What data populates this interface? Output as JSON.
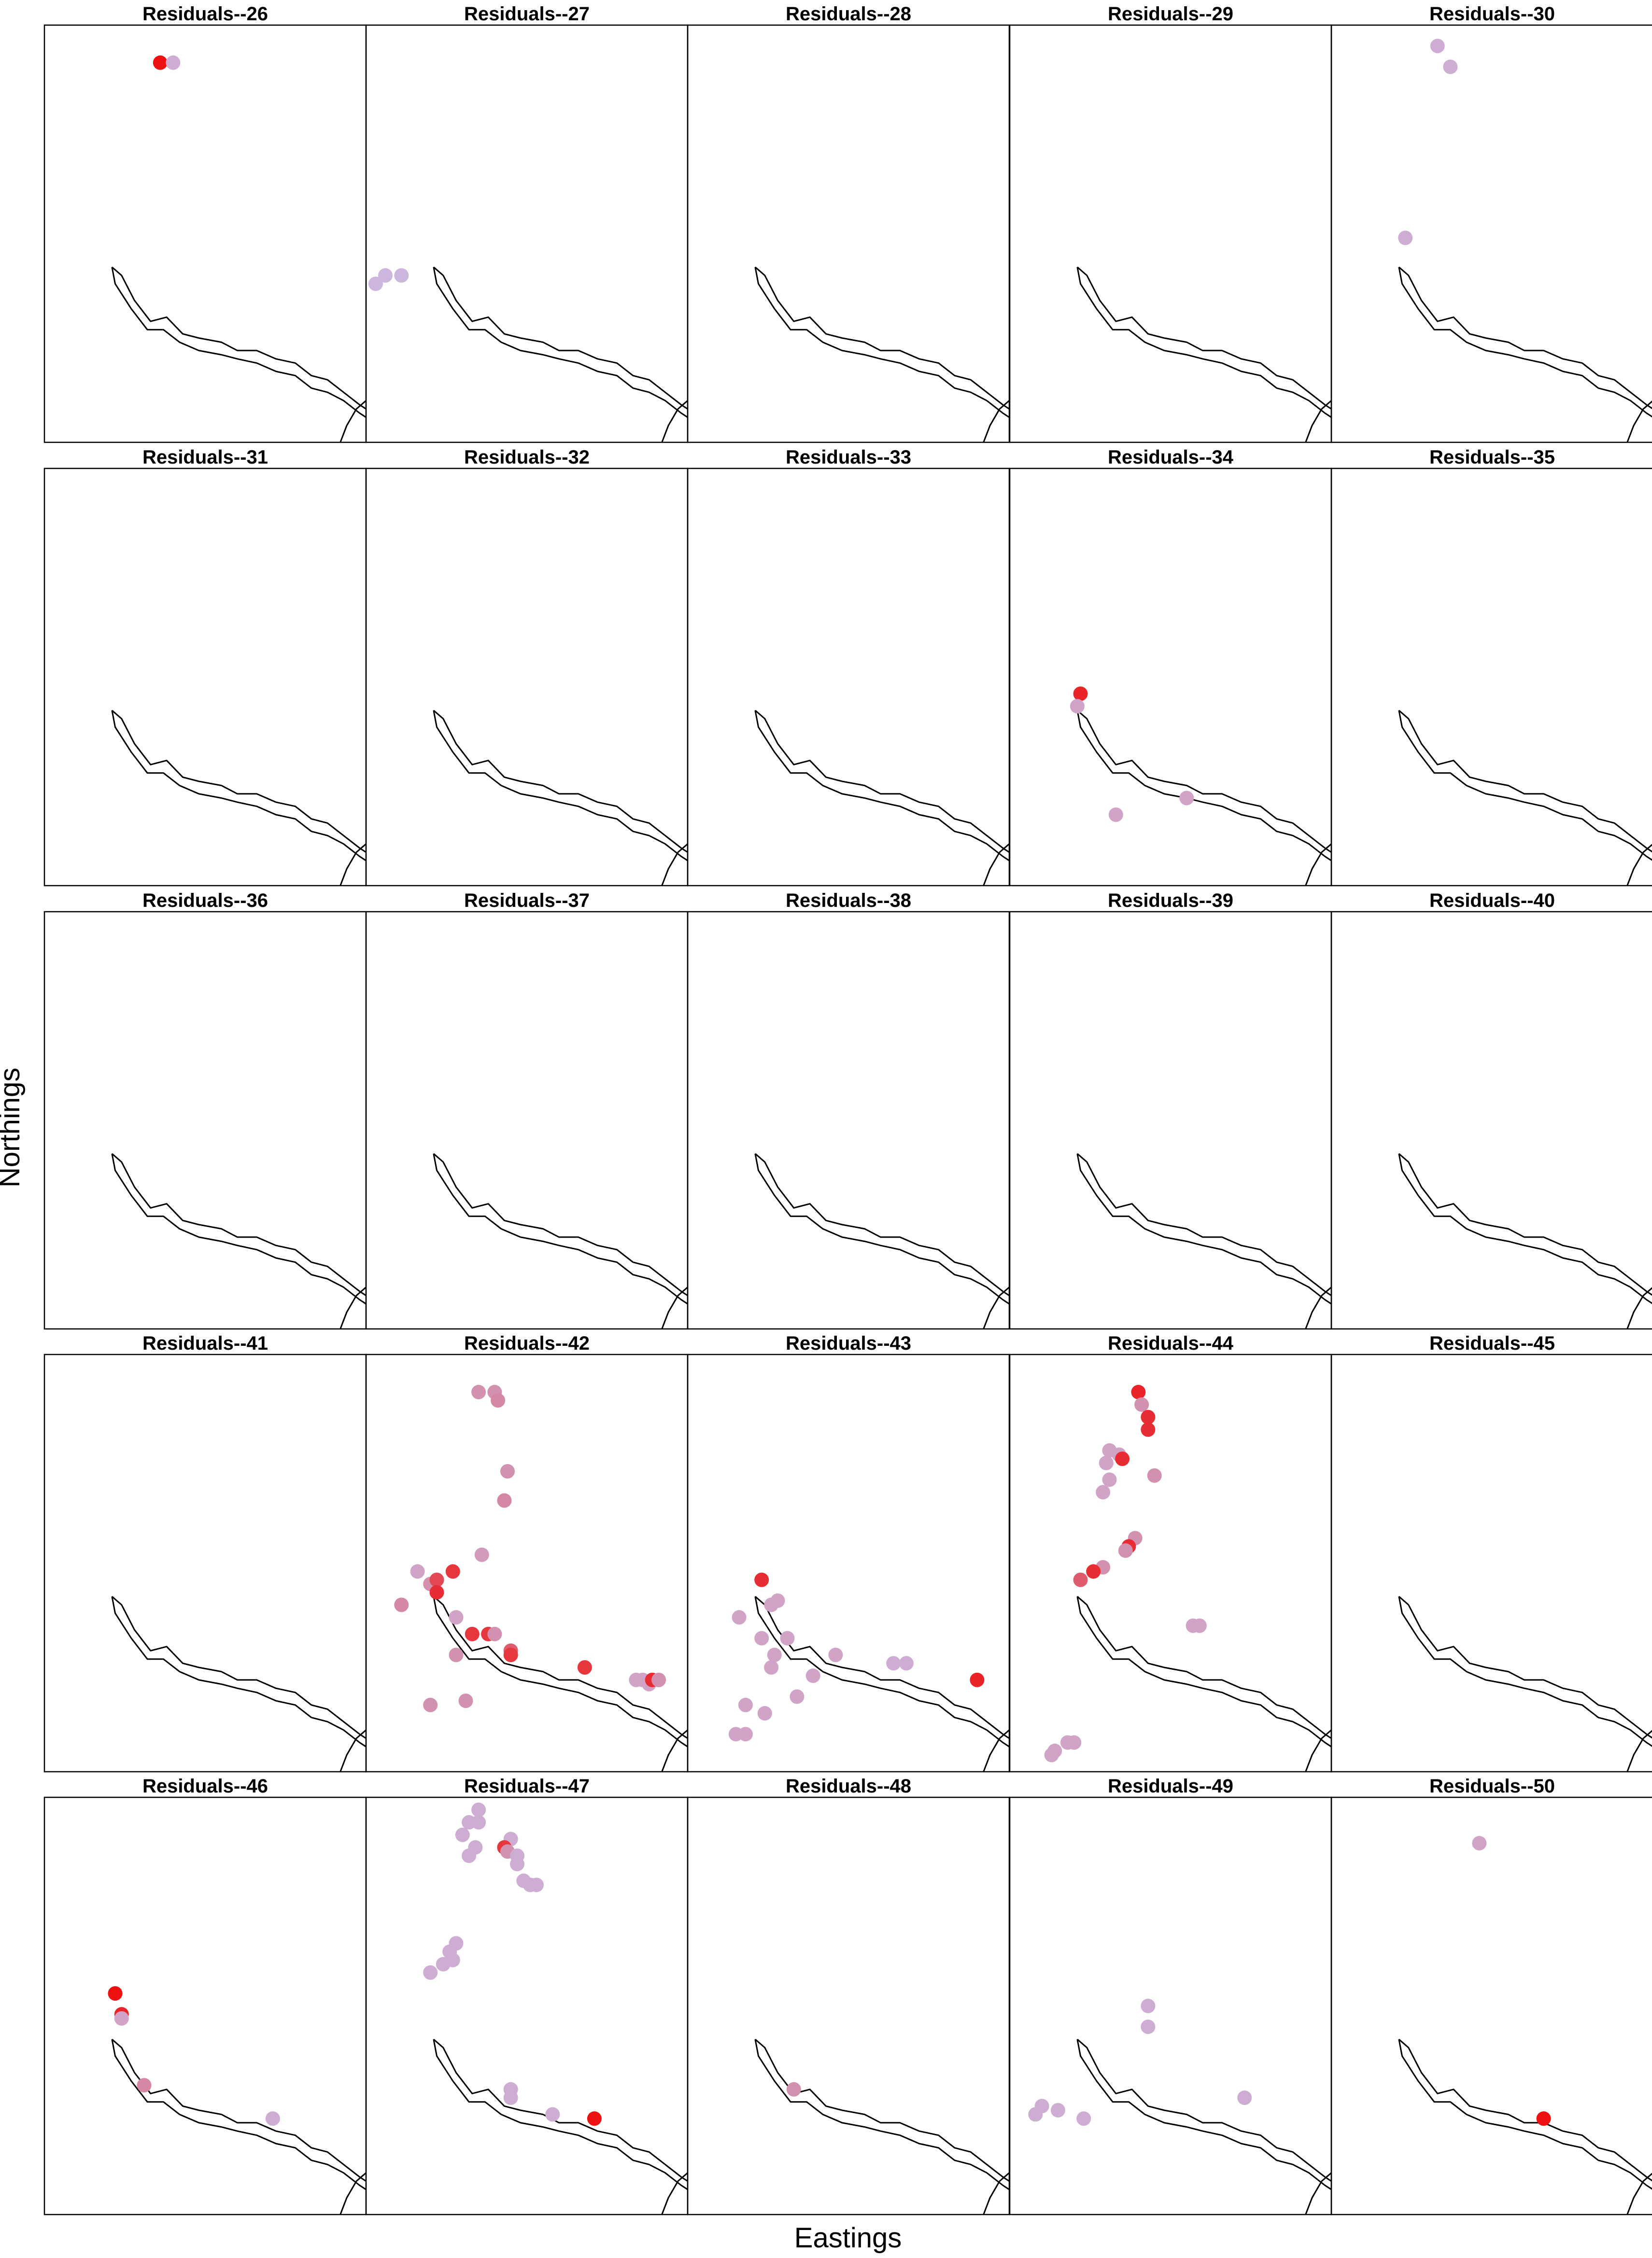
{
  "chart_data": {
    "type": "scatter",
    "xlabel": "Eastings",
    "ylabel": "Northings",
    "layout": {
      "rows": 5,
      "cols": 5
    },
    "xlim": [
      0,
      1
    ],
    "ylim": [
      0,
      1
    ],
    "color_scale": {
      "high": "#ee1111",
      "low": "#c8c8f4"
    },
    "river": {
      "outer": [
        [
          0.21,
          0.42
        ],
        [
          0.24,
          0.4
        ],
        [
          0.28,
          0.34
        ],
        [
          0.33,
          0.29
        ],
        [
          0.38,
          0.3
        ],
        [
          0.43,
          0.26
        ],
        [
          0.48,
          0.25
        ],
        [
          0.55,
          0.24
        ],
        [
          0.6,
          0.22
        ],
        [
          0.66,
          0.22
        ],
        [
          0.72,
          0.2
        ],
        [
          0.78,
          0.19
        ],
        [
          0.83,
          0.16
        ],
        [
          0.88,
          0.15
        ],
        [
          0.93,
          0.12
        ],
        [
          0.98,
          0.09
        ],
        [
          1.0,
          0.08
        ]
      ],
      "inner": [
        [
          0.21,
          0.42
        ],
        [
          0.22,
          0.38
        ],
        [
          0.27,
          0.32
        ],
        [
          0.32,
          0.27
        ],
        [
          0.37,
          0.27
        ],
        [
          0.42,
          0.24
        ],
        [
          0.48,
          0.22
        ],
        [
          0.55,
          0.21
        ],
        [
          0.6,
          0.2
        ],
        [
          0.66,
          0.19
        ],
        [
          0.72,
          0.17
        ],
        [
          0.78,
          0.16
        ],
        [
          0.83,
          0.13
        ],
        [
          0.88,
          0.12
        ],
        [
          0.93,
          0.1
        ],
        [
          0.98,
          0.07
        ],
        [
          1.0,
          0.06
        ]
      ],
      "corner": [
        [
          1.0,
          0.1
        ],
        [
          0.97,
          0.08
        ],
        [
          0.94,
          0.04
        ],
        [
          0.92,
          0.0
        ]
      ]
    },
    "panels": [
      {
        "title": "Residuals--26",
        "points": [
          {
            "x": 0.36,
            "y": 0.91,
            "v": 1.0
          },
          {
            "x": 0.4,
            "y": 0.91,
            "v": 0.15
          }
        ]
      },
      {
        "title": "Residuals--27",
        "points": [
          {
            "x": 0.03,
            "y": 0.38,
            "v": 0.1
          },
          {
            "x": 0.06,
            "y": 0.4,
            "v": 0.1
          },
          {
            "x": 0.11,
            "y": 0.4,
            "v": 0.1
          }
        ]
      },
      {
        "title": "Residuals--28",
        "points": []
      },
      {
        "title": "Residuals--29",
        "points": []
      },
      {
        "title": "Residuals--30",
        "points": [
          {
            "x": 0.33,
            "y": 0.95,
            "v": 0.15
          },
          {
            "x": 0.37,
            "y": 0.9,
            "v": 0.15
          },
          {
            "x": 0.23,
            "y": 0.49,
            "v": 0.15
          }
        ]
      },
      {
        "title": "Residuals--31",
        "points": []
      },
      {
        "title": "Residuals--32",
        "points": []
      },
      {
        "title": "Residuals--33",
        "points": []
      },
      {
        "title": "Residuals--34",
        "points": [
          {
            "x": 0.22,
            "y": 0.46,
            "v": 0.9
          },
          {
            "x": 0.21,
            "y": 0.43,
            "v": 0.2
          },
          {
            "x": 0.33,
            "y": 0.17,
            "v": 0.2
          },
          {
            "x": 0.55,
            "y": 0.21,
            "v": 0.2
          }
        ]
      },
      {
        "title": "Residuals--35",
        "points": []
      },
      {
        "title": "Residuals--36",
        "points": []
      },
      {
        "title": "Residuals--37",
        "points": []
      },
      {
        "title": "Residuals--38",
        "points": []
      },
      {
        "title": "Residuals--39",
        "points": []
      },
      {
        "title": "Residuals--40",
        "points": []
      },
      {
        "title": "Residuals--41",
        "points": []
      },
      {
        "title": "Residuals--42",
        "points": [
          {
            "x": 0.35,
            "y": 0.91,
            "v": 0.3
          },
          {
            "x": 0.4,
            "y": 0.91,
            "v": 0.3
          },
          {
            "x": 0.41,
            "y": 0.89,
            "v": 0.35
          },
          {
            "x": 0.44,
            "y": 0.72,
            "v": 0.3
          },
          {
            "x": 0.43,
            "y": 0.65,
            "v": 0.35
          },
          {
            "x": 0.36,
            "y": 0.52,
            "v": 0.25
          },
          {
            "x": 0.16,
            "y": 0.48,
            "v": 0.2
          },
          {
            "x": 0.2,
            "y": 0.45,
            "v": 0.3
          },
          {
            "x": 0.22,
            "y": 0.46,
            "v": 0.7
          },
          {
            "x": 0.27,
            "y": 0.48,
            "v": 0.8
          },
          {
            "x": 0.22,
            "y": 0.43,
            "v": 0.85
          },
          {
            "x": 0.11,
            "y": 0.4,
            "v": 0.35
          },
          {
            "x": 0.28,
            "y": 0.37,
            "v": 0.2
          },
          {
            "x": 0.33,
            "y": 0.33,
            "v": 0.8
          },
          {
            "x": 0.38,
            "y": 0.33,
            "v": 0.8
          },
          {
            "x": 0.4,
            "y": 0.33,
            "v": 0.3
          },
          {
            "x": 0.45,
            "y": 0.29,
            "v": 0.6
          },
          {
            "x": 0.45,
            "y": 0.28,
            "v": 0.8
          },
          {
            "x": 0.28,
            "y": 0.28,
            "v": 0.3
          },
          {
            "x": 0.68,
            "y": 0.25,
            "v": 0.8
          },
          {
            "x": 0.2,
            "y": 0.16,
            "v": 0.3
          },
          {
            "x": 0.31,
            "y": 0.17,
            "v": 0.3
          },
          {
            "x": 0.84,
            "y": 0.22,
            "v": 0.2
          },
          {
            "x": 0.86,
            "y": 0.22,
            "v": 0.2
          },
          {
            "x": 0.88,
            "y": 0.21,
            "v": 0.2
          },
          {
            "x": 0.89,
            "y": 0.22,
            "v": 0.85
          },
          {
            "x": 0.91,
            "y": 0.22,
            "v": 0.3
          }
        ]
      },
      {
        "title": "Residuals--43",
        "points": [
          {
            "x": 0.23,
            "y": 0.46,
            "v": 0.85
          },
          {
            "x": 0.16,
            "y": 0.37,
            "v": 0.2
          },
          {
            "x": 0.26,
            "y": 0.4,
            "v": 0.2
          },
          {
            "x": 0.28,
            "y": 0.41,
            "v": 0.2
          },
          {
            "x": 0.23,
            "y": 0.32,
            "v": 0.2
          },
          {
            "x": 0.31,
            "y": 0.32,
            "v": 0.2
          },
          {
            "x": 0.27,
            "y": 0.28,
            "v": 0.2
          },
          {
            "x": 0.46,
            "y": 0.28,
            "v": 0.2
          },
          {
            "x": 0.39,
            "y": 0.23,
            "v": 0.2
          },
          {
            "x": 0.26,
            "y": 0.25,
            "v": 0.2
          },
          {
            "x": 0.34,
            "y": 0.18,
            "v": 0.2
          },
          {
            "x": 0.18,
            "y": 0.16,
            "v": 0.2
          },
          {
            "x": 0.24,
            "y": 0.14,
            "v": 0.2
          },
          {
            "x": 0.15,
            "y": 0.09,
            "v": 0.2
          },
          {
            "x": 0.18,
            "y": 0.09,
            "v": 0.2
          },
          {
            "x": 0.64,
            "y": 0.26,
            "v": 0.15
          },
          {
            "x": 0.68,
            "y": 0.26,
            "v": 0.15
          },
          {
            "x": 0.9,
            "y": 0.22,
            "v": 0.9
          }
        ]
      },
      {
        "title": "Residuals--44",
        "points": [
          {
            "x": 0.4,
            "y": 0.91,
            "v": 0.9
          },
          {
            "x": 0.41,
            "y": 0.88,
            "v": 0.3
          },
          {
            "x": 0.43,
            "y": 0.85,
            "v": 0.85
          },
          {
            "x": 0.43,
            "y": 0.82,
            "v": 0.85
          },
          {
            "x": 0.31,
            "y": 0.77,
            "v": 0.2
          },
          {
            "x": 0.34,
            "y": 0.76,
            "v": 0.2
          },
          {
            "x": 0.35,
            "y": 0.75,
            "v": 0.85
          },
          {
            "x": 0.3,
            "y": 0.74,
            "v": 0.2
          },
          {
            "x": 0.45,
            "y": 0.71,
            "v": 0.3
          },
          {
            "x": 0.31,
            "y": 0.7,
            "v": 0.2
          },
          {
            "x": 0.29,
            "y": 0.67,
            "v": 0.2
          },
          {
            "x": 0.39,
            "y": 0.56,
            "v": 0.3
          },
          {
            "x": 0.37,
            "y": 0.54,
            "v": 0.85
          },
          {
            "x": 0.36,
            "y": 0.53,
            "v": 0.3
          },
          {
            "x": 0.29,
            "y": 0.49,
            "v": 0.3
          },
          {
            "x": 0.26,
            "y": 0.48,
            "v": 0.85
          },
          {
            "x": 0.22,
            "y": 0.46,
            "v": 0.6
          },
          {
            "x": 0.57,
            "y": 0.35,
            "v": 0.2
          },
          {
            "x": 0.59,
            "y": 0.35,
            "v": 0.2
          },
          {
            "x": 0.18,
            "y": 0.07,
            "v": 0.2
          },
          {
            "x": 0.2,
            "y": 0.07,
            "v": 0.2
          },
          {
            "x": 0.14,
            "y": 0.05,
            "v": 0.2
          },
          {
            "x": 0.13,
            "y": 0.04,
            "v": 0.2
          }
        ]
      },
      {
        "title": "Residuals--45",
        "points": []
      },
      {
        "title": "Residuals--46",
        "points": [
          {
            "x": 0.22,
            "y": 0.53,
            "v": 1.0
          },
          {
            "x": 0.24,
            "y": 0.48,
            "v": 0.9
          },
          {
            "x": 0.24,
            "y": 0.47,
            "v": 0.2
          },
          {
            "x": 0.31,
            "y": 0.31,
            "v": 0.35
          },
          {
            "x": 0.71,
            "y": 0.23,
            "v": 0.15
          }
        ]
      },
      {
        "title": "Residuals--47",
        "points": [
          {
            "x": 0.35,
            "y": 0.97,
            "v": 0.15
          },
          {
            "x": 0.32,
            "y": 0.94,
            "v": 0.15
          },
          {
            "x": 0.35,
            "y": 0.94,
            "v": 0.15
          },
          {
            "x": 0.3,
            "y": 0.91,
            "v": 0.15
          },
          {
            "x": 0.34,
            "y": 0.88,
            "v": 0.15
          },
          {
            "x": 0.32,
            "y": 0.86,
            "v": 0.15
          },
          {
            "x": 0.45,
            "y": 0.9,
            "v": 0.15
          },
          {
            "x": 0.43,
            "y": 0.88,
            "v": 0.8
          },
          {
            "x": 0.44,
            "y": 0.87,
            "v": 0.3
          },
          {
            "x": 0.47,
            "y": 0.86,
            "v": 0.15
          },
          {
            "x": 0.47,
            "y": 0.84,
            "v": 0.15
          },
          {
            "x": 0.49,
            "y": 0.8,
            "v": 0.15
          },
          {
            "x": 0.51,
            "y": 0.79,
            "v": 0.15
          },
          {
            "x": 0.53,
            "y": 0.79,
            "v": 0.15
          },
          {
            "x": 0.28,
            "y": 0.65,
            "v": 0.15
          },
          {
            "x": 0.26,
            "y": 0.63,
            "v": 0.15
          },
          {
            "x": 0.27,
            "y": 0.61,
            "v": 0.15
          },
          {
            "x": 0.24,
            "y": 0.6,
            "v": 0.15
          },
          {
            "x": 0.2,
            "y": 0.58,
            "v": 0.15
          },
          {
            "x": 0.45,
            "y": 0.3,
            "v": 0.15
          },
          {
            "x": 0.45,
            "y": 0.28,
            "v": 0.15
          },
          {
            "x": 0.58,
            "y": 0.24,
            "v": 0.15
          },
          {
            "x": 0.71,
            "y": 0.23,
            "v": 1.0
          }
        ]
      },
      {
        "title": "Residuals--48",
        "points": [
          {
            "x": 0.33,
            "y": 0.3,
            "v": 0.3
          }
        ]
      },
      {
        "title": "Residuals--49",
        "points": [
          {
            "x": 0.43,
            "y": 0.5,
            "v": 0.15
          },
          {
            "x": 0.43,
            "y": 0.45,
            "v": 0.15
          },
          {
            "x": 0.1,
            "y": 0.26,
            "v": 0.15
          },
          {
            "x": 0.08,
            "y": 0.24,
            "v": 0.15
          },
          {
            "x": 0.15,
            "y": 0.25,
            "v": 0.15
          },
          {
            "x": 0.23,
            "y": 0.23,
            "v": 0.15
          },
          {
            "x": 0.73,
            "y": 0.28,
            "v": 0.15
          }
        ]
      },
      {
        "title": "Residuals--50",
        "points": [
          {
            "x": 0.46,
            "y": 0.89,
            "v": 0.2
          },
          {
            "x": 0.66,
            "y": 0.23,
            "v": 1.0
          }
        ]
      }
    ]
  }
}
